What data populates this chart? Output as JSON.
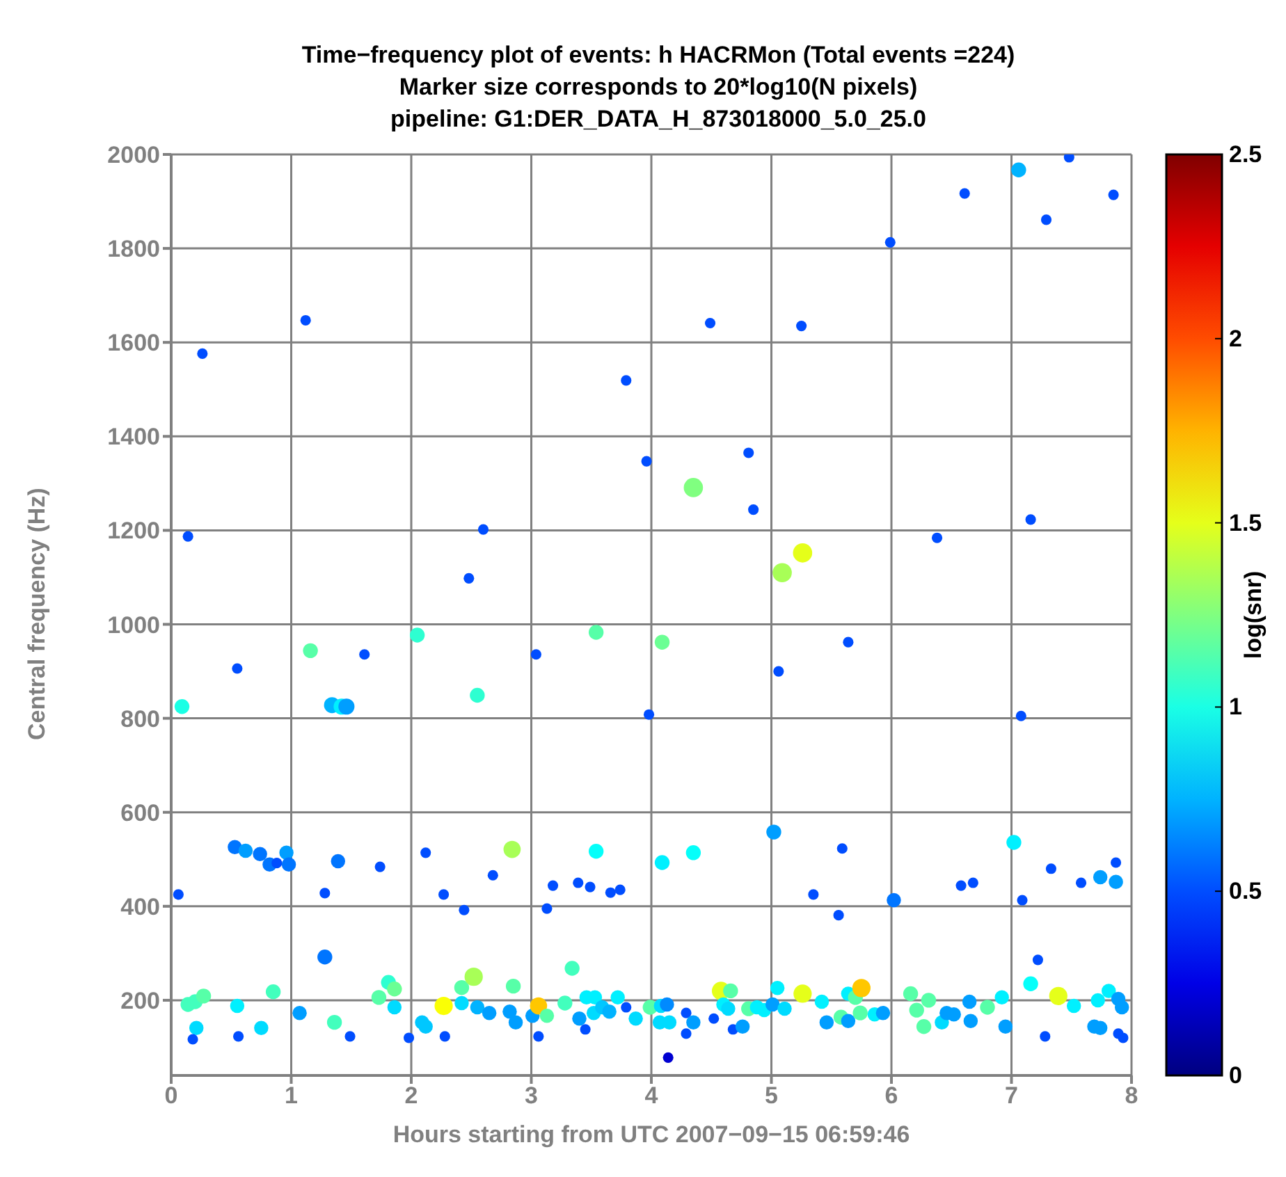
{
  "chart_data": {
    "type": "bubble",
    "title": "Time−frequency plot of events: h HACRMon (Total events =224)",
    "subtitle": "Marker size corresponds to 20*log10(N pixels)\npipeline: G1:DER_DATA_H_873018000_5.0_25.0",
    "xlabel": "Hours starting from UTC 2007−09−15 06:59:46",
    "ylabel": "Central frequency (Hz)",
    "clabel": "log(snr)",
    "xlim": [
      0,
      8
    ],
    "xticks": [
      0,
      1,
      2,
      3,
      4,
      5,
      6,
      7,
      8
    ],
    "ylim": [
      40,
      2000
    ],
    "yticks": [
      200,
      400,
      600,
      800,
      1000,
      1200,
      1400,
      1600,
      1800,
      2000
    ],
    "clim": [
      0,
      2.5
    ],
    "cticks": [
      0,
      0.5,
      1,
      1.5,
      2,
      2.5
    ],
    "grid": true,
    "marker": "circle",
    "x": [
      7.06,
      7.48,
      7.85,
      6.61,
      7.29,
      5.99,
      0.26,
      1.12,
      4.49,
      5.25,
      3.79,
      3.96,
      4.81,
      4.85,
      4.35,
      0.14,
      2.6,
      6.38,
      7.16,
      2.48,
      5.26,
      5.09,
      2.05,
      1.16,
      3.54,
      4.09,
      5.64,
      1.61,
      3.04,
      0.55,
      5.06,
      0.09,
      1.34,
      1.42,
      1.46,
      2.55,
      3.98,
      7.08,
      0.53,
      0.62,
      0.74,
      0.82,
      0.88,
      0.96,
      0.98,
      1.39,
      1.28,
      1.74,
      2.12,
      2.27,
      2.68,
      2.84,
      3.18,
      3.39,
      3.49,
      3.66,
      3.74,
      3.54,
      4.09,
      4.35,
      5.02,
      5.59,
      5.35,
      6.02,
      6.58,
      6.68,
      7.02,
      7.33,
      7.58,
      7.74,
      7.87,
      7.87,
      0.06,
      7.09,
      2.44,
      3.13,
      1.28,
      0.14,
      0.2,
      0.27,
      0.55,
      0.85,
      0.21,
      0.18,
      0.56,
      0.75,
      1.07,
      1.36,
      1.49,
      1.73,
      1.81,
      1.86,
      1.86,
      1.98,
      2.09,
      2.12,
      2.28,
      2.27,
      2.42,
      2.42,
      2.52,
      2.55,
      2.65,
      2.82,
      2.87,
      2.85,
      3.01,
      3.06,
      3.06,
      3.13,
      3.28,
      3.34,
      3.4,
      3.45,
      3.46,
      3.53,
      3.52,
      3.59,
      3.65,
      3.72,
      3.79,
      3.87,
      3.99,
      4.08,
      4.13,
      4.07,
      4.15,
      4.14,
      4.29,
      4.29,
      4.35,
      4.52,
      4.58,
      4.66,
      4.6,
      4.64,
      4.68,
      4.76,
      4.81,
      4.88,
      4.94,
      5.01,
      5.05,
      5.11,
      5.26,
      5.42,
      5.46,
      5.58,
      5.64,
      5.64,
      5.7,
      5.75,
      5.74,
      5.86,
      5.93,
      5.56,
      6.16,
      6.21,
      6.27,
      6.31,
      6.42,
      6.46,
      6.52,
      6.65,
      6.66,
      6.8,
      6.92,
      6.95,
      7.22,
      7.16,
      7.39,
      7.28,
      7.52,
      7.72,
      7.69,
      7.74,
      7.81,
      7.89,
      7.92,
      7.89,
      7.93
    ],
    "values": [
      1967,
      1994,
      1914,
      1917,
      1861,
      1813,
      1576,
      1647,
      1641,
      1635,
      1519,
      1347,
      1365,
      1244,
      1291,
      1187,
      1202,
      1184,
      1223,
      1098,
      1152,
      1110,
      977,
      944,
      983,
      962,
      962,
      936,
      936,
      906,
      900,
      825,
      828,
      825,
      825,
      849,
      808,
      805,
      526,
      518,
      511,
      489,
      492,
      514,
      489,
      496,
      428,
      484,
      514,
      425,
      466,
      521,
      444,
      450,
      441,
      429,
      435,
      517,
      493,
      514,
      558,
      523,
      425,
      413,
      444,
      450,
      536,
      480,
      450,
      462,
      452,
      493,
      425,
      413,
      392,
      395,
      292,
      191,
      197,
      209,
      188,
      218,
      141,
      117,
      123,
      141,
      173,
      153,
      123,
      206,
      238,
      224,
      185,
      120,
      153,
      144,
      123,
      188,
      194,
      227,
      250,
      185,
      173,
      176,
      153,
      230,
      167,
      123,
      188,
      167,
      194,
      268,
      161,
      138,
      206,
      206,
      173,
      185,
      176,
      206,
      185,
      161,
      185,
      188,
      191,
      153,
      153,
      78,
      173,
      129,
      153,
      161,
      220,
      220,
      191,
      182,
      138,
      144,
      182,
      185,
      179,
      191,
      226,
      182,
      214,
      197,
      153,
      164,
      214,
      156,
      206,
      226,
      173,
      170,
      173,
      381,
      214,
      179,
      144,
      200,
      153,
      173,
      170,
      197,
      156,
      185,
      206,
      144,
      286,
      235,
      209,
      123,
      188,
      200,
      144,
      141,
      220,
      203,
      185,
      129,
      120
    ],
    "sizes": [
      0.6,
      0.3,
      0.3,
      0.3,
      0.3,
      0.3,
      0.3,
      0.3,
      0.3,
      0.3,
      0.3,
      0.3,
      0.3,
      0.3,
      1,
      0.3,
      0.3,
      0.3,
      0.3,
      0.3,
      1,
      1,
      0.6,
      0.6,
      0.6,
      0.6,
      0.3,
      0.3,
      0.3,
      0.3,
      0.3,
      0.6,
      0.7,
      0.7,
      0.7,
      0.6,
      0.3,
      0.3,
      0.55,
      0.55,
      0.55,
      0.55,
      0.3,
      0.55,
      0.55,
      0.55,
      0.3,
      0.3,
      0.3,
      0.3,
      0.3,
      0.8,
      0.3,
      0.3,
      0.3,
      0.3,
      0.3,
      0.6,
      0.6,
      0.6,
      0.6,
      0.3,
      0.3,
      0.55,
      0.3,
      0.3,
      0.6,
      0.3,
      0.3,
      0.55,
      0.55,
      0.3,
      0.3,
      0.3,
      0.3,
      0.3,
      0.6,
      0.6,
      0.6,
      0.6,
      0.55,
      0.6,
      0.55,
      0.3,
      0.3,
      0.55,
      0.55,
      0.6,
      0.3,
      0.6,
      0.6,
      0.6,
      0.55,
      0.3,
      0.55,
      0.55,
      0.3,
      0.9,
      0.55,
      0.6,
      0.9,
      0.55,
      0.55,
      0.55,
      0.55,
      0.6,
      0.55,
      0.3,
      0.8,
      0.55,
      0.6,
      0.6,
      0.55,
      0.3,
      0.55,
      0.55,
      0.55,
      0.55,
      0.55,
      0.55,
      0.3,
      0.55,
      0.6,
      0.55,
      0.55,
      0.55,
      0.55,
      0.3,
      0.3,
      0.3,
      0.55,
      0.3,
      0.9,
      0.6,
      0.55,
      0.55,
      0.3,
      0.55,
      0.6,
      0.55,
      0.55,
      0.55,
      0.55,
      0.55,
      0.9,
      0.55,
      0.55,
      0.6,
      0.55,
      0.55,
      0.6,
      0.9,
      0.6,
      0.55,
      0.55,
      0.3,
      0.6,
      0.6,
      0.6,
      0.6,
      0.55,
      0.55,
      0.55,
      0.55,
      0.55,
      0.6,
      0.55,
      0.55,
      0.3,
      0.6,
      0.9,
      0.3,
      0.55,
      0.55,
      0.55,
      0.55,
      0.55,
      0.55,
      0.55,
      0.3,
      0.3
    ],
    "cvalues": [
      0.75,
      0.5,
      0.5,
      0.5,
      0.5,
      0.5,
      0.5,
      0.5,
      0.5,
      0.5,
      0.5,
      0.5,
      0.5,
      0.5,
      1.25,
      0.5,
      0.5,
      0.5,
      0.5,
      0.5,
      1.5,
      1.35,
      1.05,
      1.15,
      1.15,
      1.2,
      0.5,
      0.5,
      0.5,
      0.5,
      0.5,
      1.0,
      0.75,
      0.9,
      0.7,
      1.05,
      0.5,
      0.5,
      0.6,
      0.7,
      0.6,
      0.6,
      0.5,
      0.7,
      0.6,
      0.6,
      0.5,
      0.5,
      0.5,
      0.5,
      0.5,
      1.35,
      0.5,
      0.5,
      0.5,
      0.5,
      0.5,
      0.95,
      0.9,
      0.95,
      0.7,
      0.5,
      0.5,
      0.6,
      0.5,
      0.5,
      0.9,
      0.5,
      0.5,
      0.7,
      0.7,
      0.5,
      0.5,
      0.5,
      0.5,
      0.5,
      0.6,
      1.1,
      1.1,
      1.15,
      0.9,
      1.1,
      0.85,
      0.5,
      0.5,
      0.85,
      0.7,
      1.1,
      0.5,
      1.15,
      1.05,
      1.2,
      0.85,
      0.5,
      0.8,
      0.8,
      0.5,
      1.55,
      0.85,
      1.15,
      1.35,
      0.75,
      0.7,
      0.7,
      0.7,
      1.15,
      0.7,
      0.5,
      1.7,
      1.15,
      1.1,
      1.1,
      0.7,
      0.5,
      0.9,
      0.9,
      0.85,
      0.8,
      0.75,
      0.9,
      0.5,
      0.85,
      1.15,
      0.85,
      0.65,
      0.85,
      0.85,
      0.2,
      0.5,
      0.5,
      0.7,
      0.5,
      1.5,
      1.15,
      0.9,
      0.85,
      0.5,
      0.7,
      1.15,
      0.9,
      0.9,
      0.7,
      0.9,
      0.85,
      1.5,
      0.9,
      0.7,
      1.15,
      0.9,
      0.7,
      1.15,
      1.7,
      1.15,
      0.9,
      0.7,
      0.5,
      1.15,
      1.15,
      1.15,
      1.15,
      0.85,
      0.7,
      0.7,
      0.7,
      0.7,
      1.15,
      0.9,
      0.7,
      0.5,
      0.95,
      1.5,
      0.5,
      0.9,
      0.9,
      0.7,
      0.7,
      0.9,
      0.7,
      0.7,
      0.5,
      0.5
    ]
  }
}
